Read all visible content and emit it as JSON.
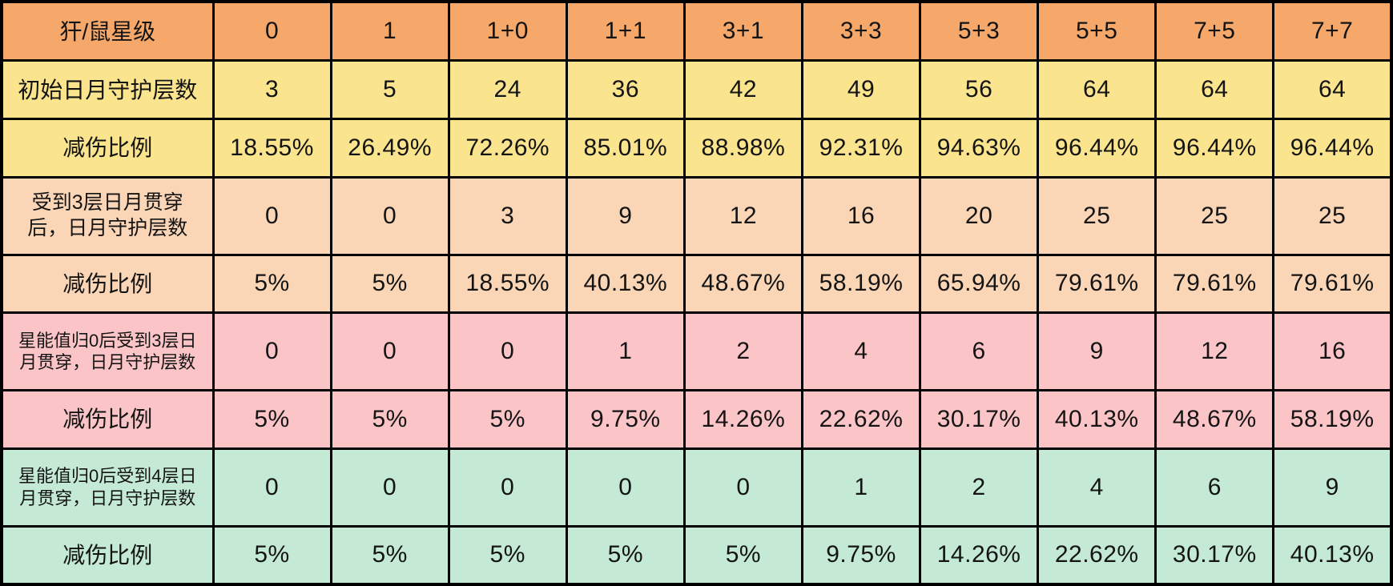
{
  "table": {
    "header": {
      "label": "犴/鼠星级",
      "bg": "#F6A86B",
      "star_levels": [
        "0",
        "1",
        "1+0",
        "1+1",
        "3+1",
        "3+3",
        "5+3",
        "5+5",
        "7+5",
        "7+7"
      ]
    },
    "rows": [
      {
        "label": "初始日月守护层数",
        "bg": "#FAE48D",
        "values": [
          "3",
          "5",
          "24",
          "36",
          "42",
          "49",
          "56",
          "64",
          "64",
          "64"
        ]
      },
      {
        "label": "减伤比例",
        "bg": "#FAE48D",
        "values": [
          "18.55%",
          "26.49%",
          "72.26%",
          "85.01%",
          "88.98%",
          "92.31%",
          "94.63%",
          "96.44%",
          "96.44%",
          "96.44%"
        ]
      },
      {
        "label": "受到3层日月贯穿\n后，日月守护层数",
        "bg": "#FBD6B6",
        "values": [
          "0",
          "0",
          "3",
          "9",
          "12",
          "16",
          "20",
          "25",
          "25",
          "25"
        ]
      },
      {
        "label": "减伤比例",
        "bg": "#FBD6B6",
        "values": [
          "5%",
          "5%",
          "18.55%",
          "40.13%",
          "48.67%",
          "58.19%",
          "65.94%",
          "79.61%",
          "79.61%",
          "79.61%"
        ]
      },
      {
        "label": "星能值归0后受到3层日\n月贯穿，日月守护层数",
        "bg": "#FBC5C8",
        "values": [
          "0",
          "0",
          "0",
          "1",
          "2",
          "4",
          "6",
          "9",
          "12",
          "16"
        ]
      },
      {
        "label": "减伤比例",
        "bg": "#FBC5C8",
        "values": [
          "5%",
          "5%",
          "5%",
          "9.75%",
          "14.26%",
          "22.62%",
          "30.17%",
          "40.13%",
          "48.67%",
          "58.19%"
        ]
      },
      {
        "label": "星能值归0后受到4层日\n月贯穿，日月守护层数",
        "bg": "#C4EAD6",
        "values": [
          "0",
          "0",
          "0",
          "0",
          "0",
          "1",
          "2",
          "4",
          "6",
          "9"
        ]
      },
      {
        "label": "减伤比例",
        "bg": "#C4EAD6",
        "values": [
          "5%",
          "5%",
          "5%",
          "5%",
          "5%",
          "9.75%",
          "14.26%",
          "22.62%",
          "30.17%",
          "40.13%"
        ]
      }
    ]
  },
  "chart_data": {
    "type": "table",
    "title": "犴/鼠星级 日月守护层数与减伤比例",
    "columns": [
      "犴/鼠星级",
      "0",
      "1",
      "1+0",
      "1+1",
      "3+1",
      "3+3",
      "5+3",
      "5+5",
      "7+5",
      "7+7"
    ],
    "rows": [
      [
        "初始日月守护层数",
        3,
        5,
        24,
        36,
        42,
        49,
        56,
        64,
        64,
        64
      ],
      [
        "减伤比例",
        "18.55%",
        "26.49%",
        "72.26%",
        "85.01%",
        "88.98%",
        "92.31%",
        "94.63%",
        "96.44%",
        "96.44%",
        "96.44%"
      ],
      [
        "受到3层日月贯穿后，日月守护层数",
        0,
        0,
        3,
        9,
        12,
        16,
        20,
        25,
        25,
        25
      ],
      [
        "减伤比例",
        "5%",
        "5%",
        "18.55%",
        "40.13%",
        "48.67%",
        "58.19%",
        "65.94%",
        "79.61%",
        "79.61%",
        "79.61%"
      ],
      [
        "星能值归0后受到3层日月贯穿，日月守护层数",
        0,
        0,
        0,
        1,
        2,
        4,
        6,
        9,
        12,
        16
      ],
      [
        "减伤比例",
        "5%",
        "5%",
        "5%",
        "9.75%",
        "14.26%",
        "22.62%",
        "30.17%",
        "40.13%",
        "48.67%",
        "58.19%"
      ],
      [
        "星能值归0后受到4层日月贯穿，日月守护层数",
        0,
        0,
        0,
        0,
        0,
        1,
        2,
        4,
        6,
        9
      ],
      [
        "减伤比例",
        "5%",
        "5%",
        "5%",
        "5%",
        "5%",
        "9.75%",
        "14.26%",
        "22.62%",
        "30.17%",
        "40.13%"
      ]
    ],
    "row_group_colors": {
      "header_orange": "#F6A86B",
      "initial_yellow": "#FAE48D",
      "after_3_pierce_peach": "#FBD6B6",
      "energy0_3_pierce_pink": "#FBC5C8",
      "energy0_4_pierce_green": "#C4EAD6"
    },
    "grid": true,
    "border_color": "#000000"
  }
}
